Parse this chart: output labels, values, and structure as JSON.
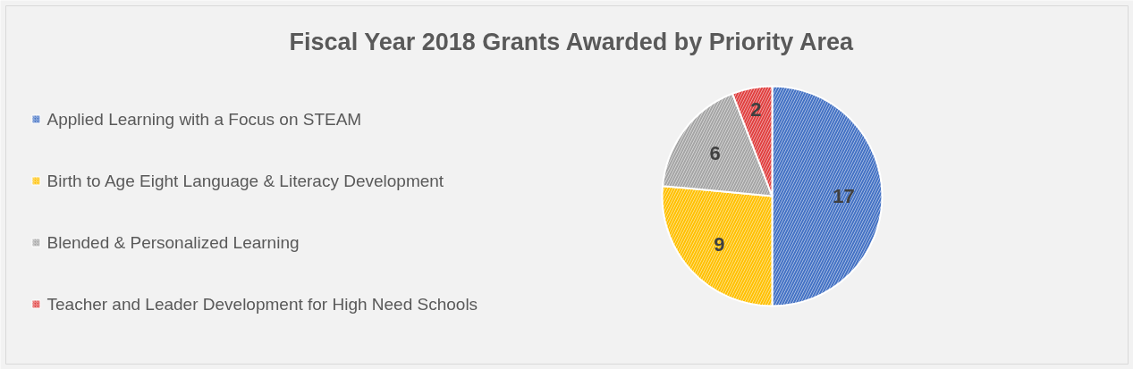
{
  "chart_data": {
    "type": "pie",
    "title": "Fiscal Year 2018 Grants Awarded by Priority Area",
    "categories": [
      "Applied Learning with a Focus on STEAM",
      "Birth to Age Eight Language & Literacy Development",
      "Blended & Personalized Learning",
      "Teacher and Leader Development for High Need Schools"
    ],
    "values": [
      17,
      9,
      6,
      2
    ],
    "colors": [
      "#4472c4",
      "#ffc000",
      "#a5a5a5",
      "#e04040"
    ],
    "data_labels": true,
    "legend": "left"
  }
}
